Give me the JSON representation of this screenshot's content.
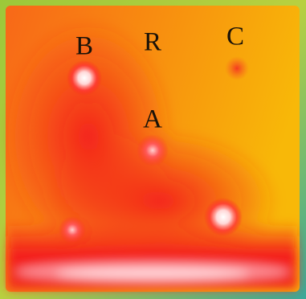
{
  "labels": [
    "B",
    "R",
    "C",
    "A"
  ]
}
